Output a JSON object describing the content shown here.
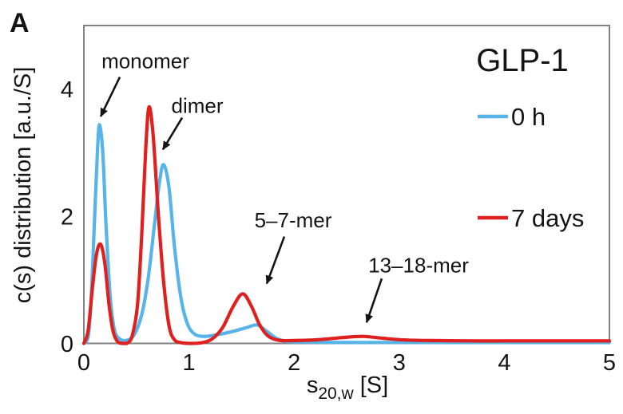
{
  "figure": {
    "panel_label": "A",
    "colors": {
      "blue": "#56b4e9",
      "red": "#e01f1f",
      "axis": "#828282",
      "text": "#141414"
    }
  },
  "chart_data": {
    "type": "line",
    "title": "GLP-1",
    "xlabel": "s20,w [S]",
    "xlabel_parts": {
      "base": "s",
      "subscript": "20,w",
      "unit": " [S]"
    },
    "ylabel": "c(s) distribution [a.u./S]",
    "xlim": [
      0,
      5
    ],
    "ylim": [
      0,
      5
    ],
    "xticks": [
      "0",
      "1",
      "2",
      "3",
      "4",
      "5"
    ],
    "xtick_values": [
      0,
      1,
      2,
      3,
      4,
      5
    ],
    "yticks": [
      "0",
      "2",
      "4"
    ],
    "ytick_values": [
      0,
      2,
      4
    ],
    "grid": false,
    "legend_position": "upper right",
    "series": [
      {
        "name": "0 h",
        "color": "#56b4e9",
        "points": [
          [
            0.0,
            0.0
          ],
          [
            0.04,
            0.1
          ],
          [
            0.07,
            0.7
          ],
          [
            0.1,
            1.9
          ],
          [
            0.13,
            3.05
          ],
          [
            0.15,
            3.44
          ],
          [
            0.18,
            3.0
          ],
          [
            0.21,
            1.9
          ],
          [
            0.25,
            0.75
          ],
          [
            0.29,
            0.22
          ],
          [
            0.34,
            0.07
          ],
          [
            0.41,
            0.05
          ],
          [
            0.48,
            0.14
          ],
          [
            0.55,
            0.45
          ],
          [
            0.61,
            1.0
          ],
          [
            0.67,
            1.85
          ],
          [
            0.72,
            2.55
          ],
          [
            0.76,
            2.81
          ],
          [
            0.81,
            2.45
          ],
          [
            0.86,
            1.55
          ],
          [
            0.92,
            0.75
          ],
          [
            0.98,
            0.33
          ],
          [
            1.05,
            0.15
          ],
          [
            1.15,
            0.11
          ],
          [
            1.28,
            0.14
          ],
          [
            1.42,
            0.19
          ],
          [
            1.55,
            0.25
          ],
          [
            1.65,
            0.29
          ],
          [
            1.74,
            0.19
          ],
          [
            1.83,
            0.08
          ],
          [
            1.93,
            0.03
          ],
          [
            2.1,
            0.02
          ],
          [
            2.4,
            0.015
          ],
          [
            2.8,
            0.015
          ],
          [
            3.2,
            0.015
          ],
          [
            3.6,
            0.015
          ],
          [
            4.0,
            0.015
          ],
          [
            4.5,
            0.015
          ],
          [
            5.0,
            0.015
          ]
        ]
      },
      {
        "name": "7 days",
        "color": "#e01f1f",
        "points": [
          [
            0.0,
            0.0
          ],
          [
            0.04,
            0.2
          ],
          [
            0.08,
            0.85
          ],
          [
            0.12,
            1.4
          ],
          [
            0.16,
            1.56
          ],
          [
            0.2,
            1.25
          ],
          [
            0.24,
            0.6
          ],
          [
            0.28,
            0.18
          ],
          [
            0.32,
            0.03
          ],
          [
            0.36,
            0.0
          ],
          [
            0.41,
            0.0
          ],
          [
            0.46,
            0.12
          ],
          [
            0.51,
            0.6
          ],
          [
            0.55,
            1.7
          ],
          [
            0.59,
            3.1
          ],
          [
            0.62,
            3.72
          ],
          [
            0.66,
            3.25
          ],
          [
            0.71,
            2.0
          ],
          [
            0.76,
            0.95
          ],
          [
            0.81,
            0.28
          ],
          [
            0.86,
            0.06
          ],
          [
            0.93,
            0.01
          ],
          [
            1.02,
            0.0
          ],
          [
            1.12,
            0.01
          ],
          [
            1.22,
            0.07
          ],
          [
            1.32,
            0.25
          ],
          [
            1.42,
            0.58
          ],
          [
            1.51,
            0.78
          ],
          [
            1.59,
            0.6
          ],
          [
            1.67,
            0.3
          ],
          [
            1.75,
            0.12
          ],
          [
            1.85,
            0.05
          ],
          [
            2.0,
            0.045
          ],
          [
            2.2,
            0.055
          ],
          [
            2.45,
            0.09
          ],
          [
            2.65,
            0.11
          ],
          [
            2.85,
            0.08
          ],
          [
            3.05,
            0.055
          ],
          [
            3.3,
            0.045
          ],
          [
            3.7,
            0.04
          ],
          [
            4.1,
            0.04
          ],
          [
            4.6,
            0.04
          ],
          [
            5.0,
            0.04
          ]
        ]
      }
    ],
    "annotations": [
      {
        "label": "monomer",
        "text_xy": [
          0.585,
          4.44
        ],
        "arrow_from": [
          0.342,
          4.19
        ],
        "arrow_to": [
          0.16,
          3.57
        ]
      },
      {
        "label": "dimer",
        "text_xy": [
          1.079,
          3.74
        ],
        "arrow_from": [
          0.935,
          3.55
        ],
        "arrow_to": [
          0.752,
          3.05
        ]
      },
      {
        "label": "5–7-mer",
        "text_xy": [
          1.991,
          1.94
        ],
        "arrow_from": [
          1.907,
          1.68
        ],
        "arrow_to": [
          1.74,
          0.94
        ]
      },
      {
        "label": "13–18-mer",
        "text_xy": [
          3.184,
          1.23
        ],
        "arrow_from": [
          2.834,
          1.02
        ],
        "arrow_to": [
          2.69,
          0.33
        ]
      }
    ]
  },
  "legend": {
    "title": "GLP-1",
    "items": [
      {
        "label": "0 h",
        "color": "#56b4e9"
      },
      {
        "label": "7 days",
        "color": "#e01f1f"
      }
    ]
  }
}
